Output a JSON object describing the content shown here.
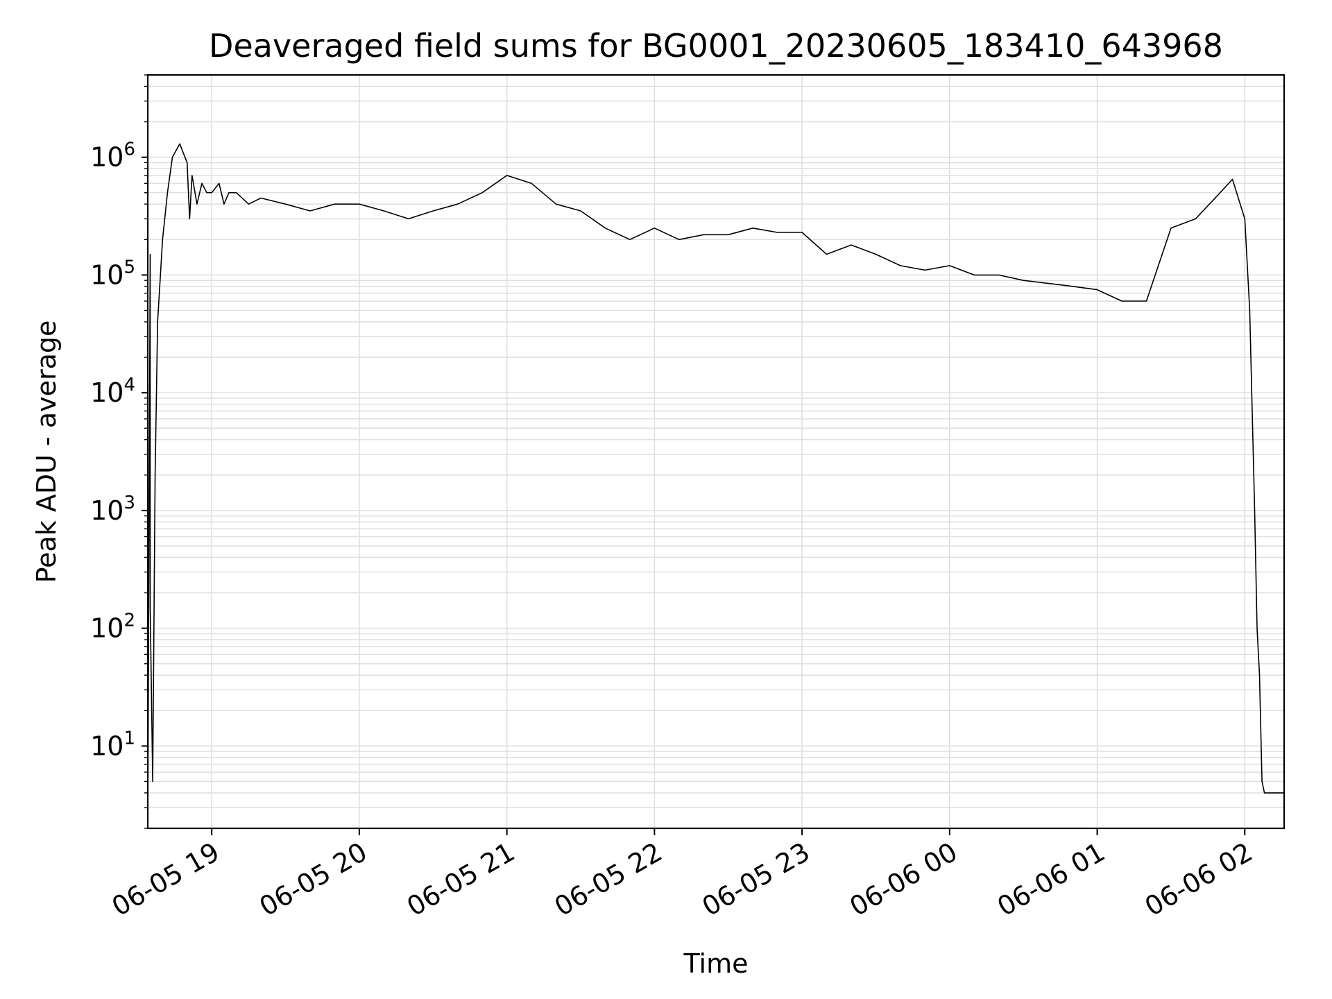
{
  "chart_data": {
    "type": "line",
    "title": "Deaveraged field sums for BG0001_20230605_183410_643968",
    "xlabel": "Time",
    "ylabel": "Peak ADU - average",
    "yscale": "log",
    "grid": true,
    "legend": "none",
    "line_color": "#000000",
    "grid_color": "#e0e0e0",
    "xlim": [
      "2023-06-05 18:34",
      "2023-06-06 02:16"
    ],
    "ylim": [
      2,
      5000000
    ],
    "x_ticks": [
      {
        "value": "2023-06-05 19:00",
        "label": "06-05 19"
      },
      {
        "value": "2023-06-05 20:00",
        "label": "06-05 20"
      },
      {
        "value": "2023-06-05 21:00",
        "label": "06-05 21"
      },
      {
        "value": "2023-06-05 22:00",
        "label": "06-05 22"
      },
      {
        "value": "2023-06-05 23:00",
        "label": "06-05 23"
      },
      {
        "value": "2023-06-06 00:00",
        "label": "06-06 00"
      },
      {
        "value": "2023-06-06 01:00",
        "label": "06-06 01"
      },
      {
        "value": "2023-06-06 02:00",
        "label": "06-06 02"
      }
    ],
    "y_ticks": [
      {
        "value": 10,
        "base": "10",
        "exp": "1"
      },
      {
        "value": 100,
        "base": "10",
        "exp": "2"
      },
      {
        "value": 1000,
        "base": "10",
        "exp": "3"
      },
      {
        "value": 10000,
        "base": "10",
        "exp": "4"
      },
      {
        "value": 100000,
        "base": "10",
        "exp": "5"
      },
      {
        "value": 1000000,
        "base": "10",
        "exp": "6"
      }
    ],
    "series": [
      {
        "x": [
          "2023-06-05 18:34",
          "2023-06-05 18:35",
          "2023-06-05 18:35",
          "2023-06-05 18:36",
          "2023-06-05 18:37",
          "2023-06-05 18:38",
          "2023-06-05 18:40",
          "2023-06-05 18:42",
          "2023-06-05 18:44",
          "2023-06-05 18:47",
          "2023-06-05 18:50",
          "2023-06-05 18:51",
          "2023-06-05 18:52",
          "2023-06-05 18:54",
          "2023-06-05 18:56",
          "2023-06-05 18:58",
          "2023-06-05 19:00",
          "2023-06-05 19:03",
          "2023-06-05 19:05",
          "2023-06-05 19:07",
          "2023-06-05 19:10",
          "2023-06-05 19:15",
          "2023-06-05 19:20",
          "2023-06-05 19:30",
          "2023-06-05 19:40",
          "2023-06-05 19:50",
          "2023-06-05 20:00",
          "2023-06-05 20:10",
          "2023-06-05 20:20",
          "2023-06-05 20:30",
          "2023-06-05 20:40",
          "2023-06-05 20:50",
          "2023-06-05 21:00",
          "2023-06-05 21:10",
          "2023-06-05 21:20",
          "2023-06-05 21:30",
          "2023-06-05 21:40",
          "2023-06-05 21:50",
          "2023-06-05 22:00",
          "2023-06-05 22:10",
          "2023-06-05 22:20",
          "2023-06-05 22:30",
          "2023-06-05 22:40",
          "2023-06-05 22:50",
          "2023-06-05 23:00",
          "2023-06-05 23:10",
          "2023-06-05 23:20",
          "2023-06-05 23:30",
          "2023-06-05 23:40",
          "2023-06-05 23:50",
          "2023-06-06 00:00",
          "2023-06-06 00:10",
          "2023-06-06 00:20",
          "2023-06-06 00:30",
          "2023-06-06 00:40",
          "2023-06-06 00:50",
          "2023-06-06 01:00",
          "2023-06-06 01:10",
          "2023-06-06 01:20",
          "2023-06-06 01:30",
          "2023-06-06 01:40",
          "2023-06-06 01:50",
          "2023-06-06 01:55",
          "2023-06-06 02:00",
          "2023-06-06 02:02",
          "2023-06-06 02:04",
          "2023-06-06 02:05",
          "2023-06-06 02:06",
          "2023-06-06 02:07",
          "2023-06-06 02:08",
          "2023-06-06 02:09",
          "2023-06-06 02:16"
        ],
        "y": [
          2,
          150000,
          150,
          5,
          2000,
          40000,
          200000,
          500000,
          1000000,
          1300000,
          900000,
          300000,
          700000,
          400000,
          600000,
          500000,
          500000,
          600000,
          400000,
          500000,
          500000,
          400000,
          450000,
          400000,
          350000,
          400000,
          400000,
          350000,
          300000,
          350000,
          400000,
          500000,
          700000,
          600000,
          400000,
          350000,
          250000,
          200000,
          250000,
          200000,
          220000,
          220000,
          250000,
          230000,
          230000,
          150000,
          180000,
          150000,
          120000,
          110000,
          120000,
          100000,
          100000,
          90000,
          85000,
          80000,
          75000,
          60000,
          60000,
          250000,
          300000,
          500000,
          650000,
          300000,
          50000,
          1000,
          100,
          40,
          5,
          4,
          4,
          4
        ]
      }
    ]
  }
}
